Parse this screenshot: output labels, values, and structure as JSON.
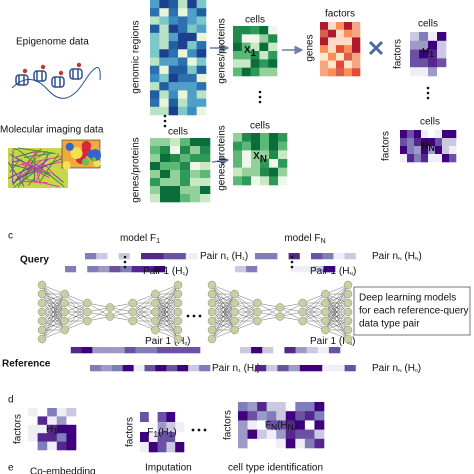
{
  "panel_b": {
    "epigenome_label": "Epigenome data",
    "imaging_label": "Molecular imaging data",
    "genomic_regions": "genomic regions",
    "cells_big": "cells",
    "genes_proteins_big": "genes/proteins",
    "x1": {
      "cols": "cells",
      "rows": "genes/proteins",
      "name": [
        "X",
        "1"
      ]
    },
    "xn": {
      "cols": "cells",
      "rows": "genes/proteins",
      "name": [
        "X",
        "N"
      ]
    },
    "w": {
      "cols": "factors",
      "rows": "genes"
    },
    "h1": {
      "cols": "cells",
      "rows": "factors",
      "name": [
        "H",
        "1"
      ]
    },
    "hn": {
      "cols": "cells",
      "rows": "factors",
      "name": [
        "H",
        "N"
      ]
    }
  },
  "panel_c": {
    "letter": "c",
    "model_1": [
      "model F",
      "1"
    ],
    "model_n": [
      "model F",
      "N"
    ],
    "query": "Query",
    "reference": "Reference",
    "pairs": [
      [
        "Pair n",
        "1",
        " (H",
        "1",
        ")"
      ],
      [
        "Pair 1 (H",
        "1",
        ")"
      ],
      [
        "Pair n",
        "N",
        " (H",
        "N",
        ")"
      ],
      [
        "Pair 1 (H",
        "N",
        ")"
      ],
      [
        "Pair 1 (H",
        "0",
        ")"
      ],
      [
        "Pair n",
        "1",
        " (H",
        "0",
        ")"
      ],
      [
        "Pair 1 (H",
        "0",
        ")"
      ],
      [
        "Pair n",
        "N",
        " (H",
        "0",
        ")"
      ]
    ],
    "note": [
      "Deep learning models",
      "for each reference-query",
      "data type pair"
    ]
  },
  "panel_d": {
    "letter": "d",
    "matrices": [
      {
        "rows": "factors",
        "name": [
          "H",
          "1"
        ]
      },
      {
        "rows": "factors",
        "name": [
          "F",
          "1",
          "(H",
          "1",
          ")"
        ]
      },
      {
        "rows": "factors",
        "name": [
          "F",
          "N",
          "(H",
          "N",
          ")"
        ]
      }
    ]
  },
  "panel_e": {
    "letter": "e",
    "labels": [
      "Co-embedding",
      "Imputation",
      "cell type identification"
    ]
  }
}
